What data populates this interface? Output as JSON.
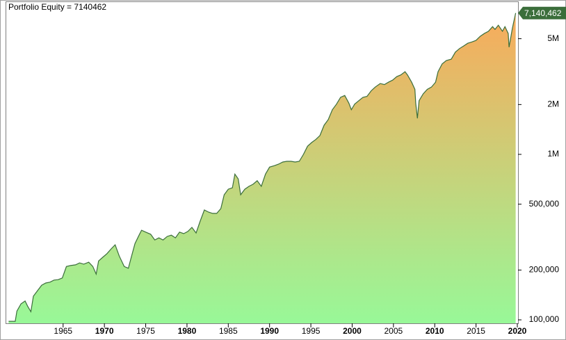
{
  "chart_data": {
    "type": "area",
    "title": "Portfolio Equity = 7140462",
    "log_scale": true,
    "line_color": "#3b6e3b",
    "gradient": [
      "#f4ae5e",
      "#98f898"
    ],
    "xlim": [
      1958.2,
      2020.0
    ],
    "ylim": [
      95300,
      8400000
    ],
    "xticks": [
      1965,
      1970,
      1975,
      1980,
      1985,
      1990,
      1995,
      2000,
      2005,
      2010,
      2015,
      2020
    ],
    "bold_tick_step": 10,
    "yticks": [
      {
        "value": 100000,
        "label": "100,000"
      },
      {
        "value": 200000,
        "label": "200,000"
      },
      {
        "value": 500000,
        "label": "500,000"
      },
      {
        "value": 1000000,
        "label": "1M"
      },
      {
        "value": 2000000,
        "label": "2M"
      },
      {
        "value": 5000000,
        "label": "5M"
      }
    ],
    "series": [
      {
        "name": "Portfolio Equity",
        "x": [
          1958.4,
          1959.2,
          1959.4,
          1959.9,
          1960.4,
          1960.7,
          1961.1,
          1961.4,
          1961.9,
          1962.4,
          1962.9,
          1963.4,
          1963.9,
          1964.4,
          1964.9,
          1965.4,
          1965.9,
          1966.5,
          1967.0,
          1967.5,
          1968.1,
          1968.6,
          1969.0,
          1969.3,
          1969.8,
          1970.3,
          1970.8,
          1971.3,
          1971.8,
          1972.4,
          1972.9,
          1973.2,
          1973.7,
          1974.2,
          1974.5,
          1975.0,
          1975.6,
          1976.1,
          1976.6,
          1977.1,
          1977.6,
          1978.1,
          1978.6,
          1979.1,
          1979.6,
          1980.1,
          1980.6,
          1981.1,
          1981.6,
          1982.1,
          1982.6,
          1983.1,
          1983.6,
          1984.1,
          1984.5,
          1985.0,
          1985.5,
          1985.8,
          1986.2,
          1986.5,
          1987.0,
          1987.5,
          1988.0,
          1988.5,
          1989.0,
          1989.5,
          1990.0,
          1990.6,
          1991.1,
          1991.6,
          1992.1,
          1992.6,
          1993.1,
          1993.6,
          1994.1,
          1994.6,
          1995.1,
          1995.6,
          1996.1,
          1996.6,
          1997.1,
          1997.6,
          1998.1,
          1998.6,
          1999.1,
          1999.6,
          1999.9,
          2000.3,
          2000.8,
          2001.3,
          2001.8,
          2002.3,
          2002.8,
          2003.4,
          2003.9,
          2004.4,
          2004.9,
          2005.4,
          2005.9,
          2006.4,
          2006.7,
          2007.2,
          2007.6,
          2007.7,
          2007.9,
          2008.1,
          2008.6,
          2009.1,
          2009.6,
          2010.1,
          2010.4,
          2010.9,
          2011.4,
          2012.0,
          2012.5,
          2013.0,
          2013.5,
          2014.0,
          2014.5,
          2015.0,
          2015.5,
          2016.0,
          2016.5,
          2017.0,
          2017.3,
          2017.7,
          2018.2,
          2018.5,
          2018.9,
          2019.0,
          2019.4,
          2019.8
        ],
        "values": [
          98000,
          98000,
          113000,
          125000,
          130000,
          121000,
          112000,
          139000,
          150000,
          162000,
          167000,
          169000,
          174000,
          175000,
          179000,
          210000,
          213000,
          215000,
          221000,
          217000,
          223000,
          210000,
          189000,
          227000,
          239000,
          251000,
          268000,
          284000,
          243000,
          210000,
          205000,
          234000,
          289000,
          325000,
          348000,
          339000,
          329000,
          304000,
          313000,
          304000,
          319000,
          325000,
          313000,
          339000,
          332000,
          342000,
          362000,
          335000,
          395000,
          461000,
          448000,
          440000,
          440000,
          470000,
          570000,
          616000,
          628000,
          760000,
          711000,
          570000,
          616000,
          641000,
          660000,
          693000,
          641000,
          760000,
          838000,
          855000,
          873000,
          899000,
          908000,
          908000,
          899000,
          908000,
          1000000,
          1120000,
          1180000,
          1230000,
          1300000,
          1500000,
          1620000,
          1860000,
          2010000,
          2210000,
          2270000,
          2040000,
          1860000,
          2010000,
          2110000,
          2210000,
          2240000,
          2420000,
          2550000,
          2680000,
          2640000,
          2730000,
          2810000,
          2950000,
          3020000,
          3160000,
          3020000,
          2730000,
          2470000,
          2040000,
          1650000,
          2110000,
          2320000,
          2470000,
          2550000,
          2730000,
          3160000,
          3520000,
          3690000,
          3760000,
          4150000,
          4360000,
          4520000,
          4690000,
          4780000,
          4880000,
          5170000,
          5370000,
          5540000,
          5910000,
          5690000,
          6030000,
          5540000,
          5910000,
          5370000,
          4440000,
          5790000,
          7140462
        ]
      }
    ],
    "annotations": [
      {
        "x": 2019.8,
        "y": 7140462,
        "label": "7,140,462"
      }
    ]
  }
}
